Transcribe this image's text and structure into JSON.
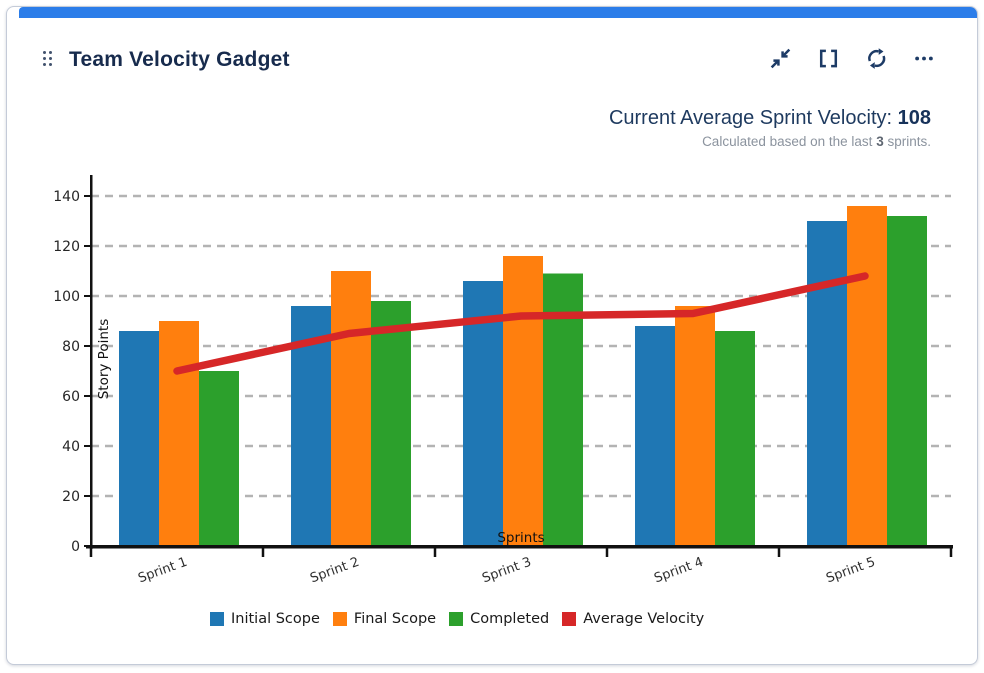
{
  "card": {
    "title": "Team Velocity Gadget",
    "accent_color": "#2b7de9",
    "title_color": "#172b4d"
  },
  "toolbar": {
    "icons": [
      "collapse",
      "fullscreen",
      "refresh",
      "more"
    ]
  },
  "summary": {
    "label": "Current Average Sprint Velocity:",
    "value": "108",
    "note_prefix": "Calculated based on the last",
    "note_bold": "3",
    "note_suffix": "sprints."
  },
  "chart_data": {
    "type": "bar",
    "subtype": "grouped bars with overlay line",
    "categories": [
      "Sprint 1",
      "Sprint 2",
      "Sprint 3",
      "Sprint 4",
      "Sprint 5"
    ],
    "series": [
      {
        "name": "Initial Scope",
        "type": "bar",
        "color": "#1f77b4",
        "values": [
          86,
          96,
          106,
          88,
          130
        ]
      },
      {
        "name": "Final Scope",
        "type": "bar",
        "color": "#ff7f0e",
        "values": [
          90,
          110,
          116,
          96,
          136
        ]
      },
      {
        "name": "Completed",
        "type": "bar",
        "color": "#2ca02c",
        "values": [
          70,
          98,
          109,
          86,
          132
        ]
      },
      {
        "name": "Average Velocity",
        "type": "line",
        "color": "#d62728",
        "values": [
          70,
          85,
          92,
          93,
          108
        ]
      }
    ],
    "xlabel": "Sprints",
    "ylabel": "Story Points",
    "ylim": [
      0,
      148
    ],
    "yticks": [
      0,
      20,
      40,
      60,
      80,
      100,
      120,
      140
    ],
    "grid": "horizontal dashed",
    "xtick_rotation": -20,
    "legend_position": "bottom"
  }
}
